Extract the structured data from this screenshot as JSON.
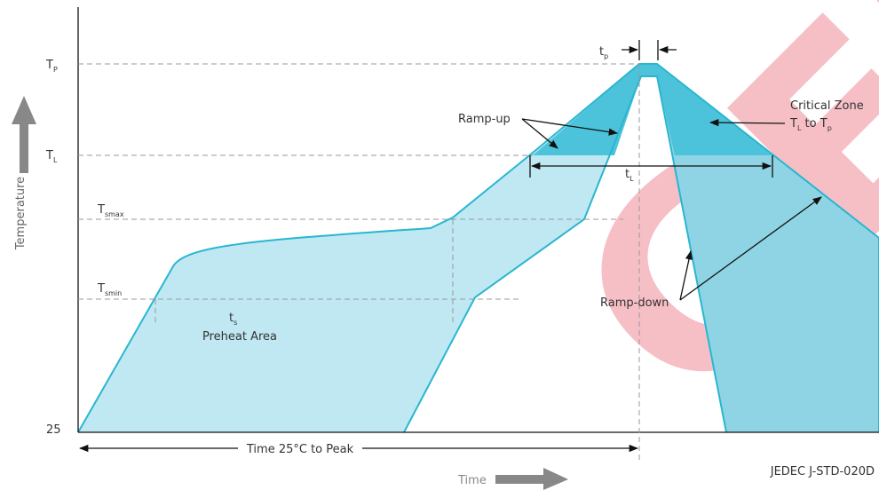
{
  "labels": {
    "tp": {
      "main": "T",
      "sub": "P"
    },
    "tl": {
      "main": "T",
      "sub": "L"
    },
    "tsmax": {
      "main": "T",
      "sub": "smax"
    },
    "tsmin": {
      "main": "T",
      "sub": "smin"
    },
    "base": "25",
    "temperature": "Temperature",
    "time": "Time",
    "time_to_peak": "Time 25°C to Peak",
    "standard": "JEDEC J-STD-020D",
    "tp_time": {
      "main": "t",
      "sub": "p"
    },
    "tl_time": {
      "main": "t",
      "sub": "L"
    },
    "ts_time": {
      "main": "t",
      "sub": "s"
    },
    "preheat": "Preheat Area",
    "ramp_up": "Ramp-up",
    "ramp_down": "Ramp-down",
    "critical_zone": "Critical Zone",
    "critical_range": {
      "t1": "T",
      "s1": "L",
      "mid": " to T",
      "s2": "p"
    }
  },
  "watermark": "GER"
}
